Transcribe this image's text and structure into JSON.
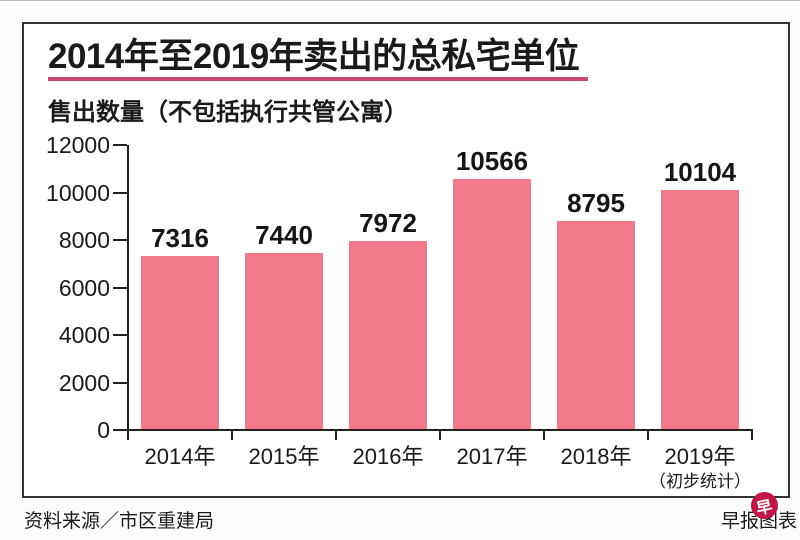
{
  "header": {
    "title": "2014年至2019年卖出的总私宅单位",
    "subtitle": "售出数量（不包括执行共管公寓）"
  },
  "chart_data": {
    "type": "bar",
    "categories": [
      "2014年",
      "2015年",
      "2016年",
      "2017年",
      "2018年",
      "2019年"
    ],
    "category_notes": [
      "",
      "",
      "",
      "",
      "",
      "（初步统计）"
    ],
    "values": [
      7316,
      7440,
      7972,
      10566,
      8795,
      10104
    ],
    "title": "2014年至2019年卖出的总私宅单位",
    "subtitle": "售出数量（不包括执行共管公寓）",
    "xlabel": "",
    "ylabel": "",
    "ylim": [
      0,
      12000
    ],
    "ytick_step": 2000,
    "grid": false,
    "legend": "none",
    "data_labels": true
  },
  "footer": {
    "source": "资料来源／市区重建局",
    "credit": "早报图表",
    "logo_glyph": "早"
  },
  "colors": {
    "bar": "#f5798c",
    "title_underline": "#c9486f",
    "logo_red": "#bf1648",
    "axis": "#222222",
    "text": "#1a1a1a"
  }
}
